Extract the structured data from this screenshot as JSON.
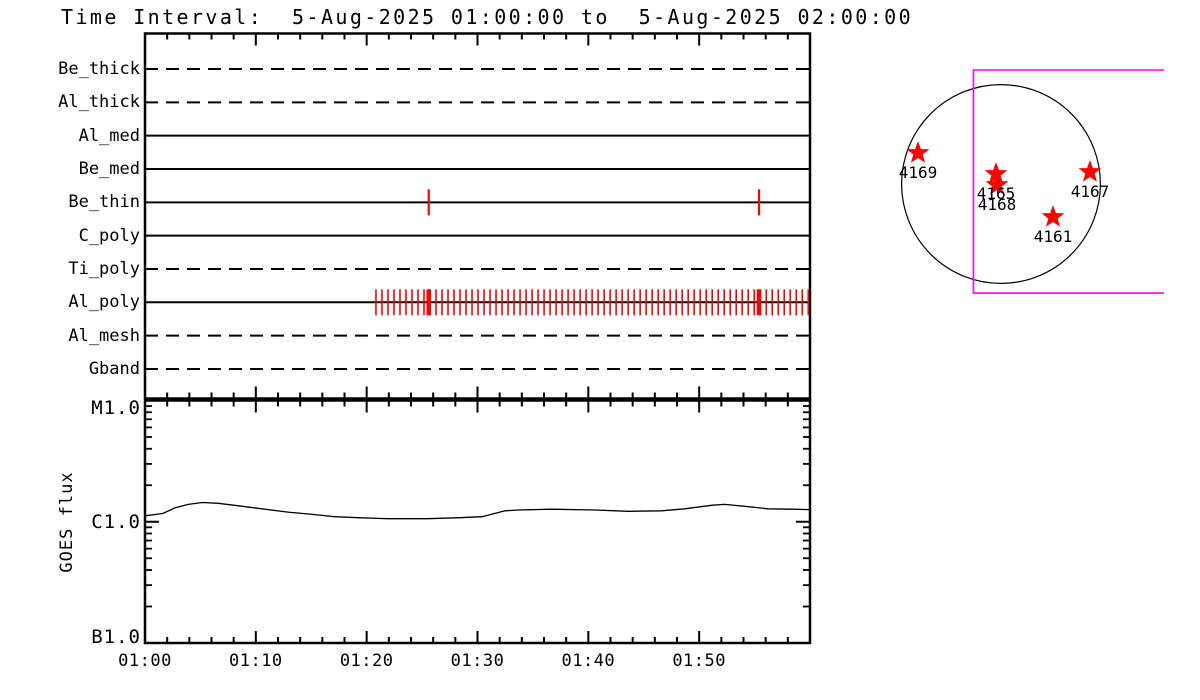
{
  "title": "Time Interval:  5-Aug-2025 01:00:00 to  5-Aug-2025 02:00:00",
  "colors": {
    "axis": "#000000",
    "exposure_mark": "#ff0000",
    "star": "#ff0000",
    "fov_box": "#ff00ff"
  },
  "chart_data": [
    {
      "id": "instrument_timeline",
      "type": "timeline",
      "x_axis": {
        "start_label": "01:00",
        "end_label": "02:00",
        "range_minutes": [
          0,
          60
        ],
        "minor_tick_minutes": 2,
        "major_tick_minutes": 10
      },
      "rows": [
        {
          "label": "Be_thick",
          "line_style": "dashed",
          "marks": []
        },
        {
          "label": "Al_thick",
          "line_style": "dashed",
          "marks": []
        },
        {
          "label": "Al_med",
          "line_style": "solid",
          "marks": []
        },
        {
          "label": "Be_med",
          "line_style": "solid",
          "marks": []
        },
        {
          "label": "Be_thin",
          "line_style": "solid",
          "marks": [
            25.6,
            55.4
          ]
        },
        {
          "label": "C_poly",
          "line_style": "solid",
          "marks": []
        },
        {
          "label": "Ti_poly",
          "line_style": "dashed",
          "marks": []
        },
        {
          "label": "Al_poly",
          "line_style": "solid",
          "marks": [],
          "mark_series": {
            "start_min": 20.84,
            "step_min": 0.5417,
            "count": 73
          },
          "thick_marks": [
            25.6,
            55.4
          ]
        },
        {
          "label": "Al_mesh",
          "line_style": "dashed",
          "marks": []
        },
        {
          "label": "Gband",
          "line_style": "dashed",
          "marks": []
        }
      ]
    },
    {
      "id": "goes_flux",
      "type": "line",
      "ylabel": "GOES flux",
      "y_scale": "log",
      "y_log_range": [
        1e-07,
        1e-05
      ],
      "y_ticks": [
        {
          "label": "B1.0",
          "flux": 1e-07
        },
        {
          "label": "C1.0",
          "flux": 1e-06
        },
        {
          "label": "M1.0",
          "flux": 1e-05
        }
      ],
      "x_tick_labels": [
        "01:00",
        "01:10",
        "01:20",
        "01:30",
        "01:40",
        "01:50"
      ],
      "x_tick_minutes": [
        0,
        10,
        20,
        30,
        40,
        50
      ],
      "series": [
        {
          "name": "GOES flux",
          "x_minutes": [
            0,
            1.6,
            2.7,
            3.9,
            5.2,
            6.6,
            8.8,
            10.8,
            12.9,
            15.1,
            17.1,
            19.2,
            21.9,
            25.5,
            28.4,
            30.4,
            32.5,
            33.7,
            36.7,
            40.6,
            43.6,
            46.6,
            48.7,
            51.2,
            52.3,
            54.1,
            56.2,
            58.4,
            60
          ],
          "flux_wm2": [
            1.12e-06,
            1.17e-06,
            1.3e-06,
            1.39e-06,
            1.44e-06,
            1.42e-06,
            1.34e-06,
            1.27e-06,
            1.2e-06,
            1.15e-06,
            1.1e-06,
            1.08e-06,
            1.06e-06,
            1.06e-06,
            1.08e-06,
            1.1e-06,
            1.23e-06,
            1.25e-06,
            1.27e-06,
            1.25e-06,
            1.22e-06,
            1.23e-06,
            1.28e-06,
            1.37e-06,
            1.39e-06,
            1.34e-06,
            1.28e-06,
            1.27e-06,
            1.26e-06
          ]
        }
      ]
    },
    {
      "id": "solar_disk_map",
      "type": "scatter",
      "active_regions": [
        {
          "noaa": "4169",
          "x_frac": -0.835,
          "y_frac": -0.312
        },
        {
          "noaa": "4165",
          "x_frac": -0.05,
          "y_frac": -0.101
        },
        {
          "noaa": "4168",
          "x_frac": -0.04,
          "y_frac": 0.01
        },
        {
          "noaa": "4167",
          "x_frac": 0.895,
          "y_frac": -0.121
        },
        {
          "noaa": "4161",
          "x_frac": 0.523,
          "y_frac": 0.332
        }
      ],
      "fov_box": {
        "x_frac_left": -0.277,
        "x_frac_right": 1.64,
        "y_frac_top": -1.147,
        "y_frac_bottom": 1.097,
        "open_right_edge": true
      }
    }
  ]
}
